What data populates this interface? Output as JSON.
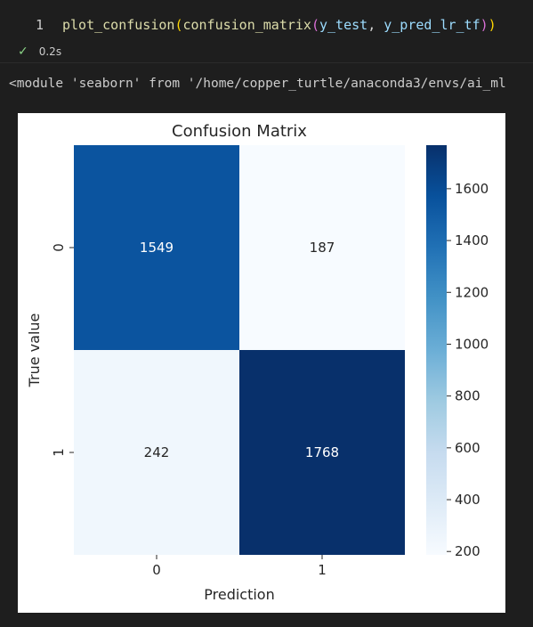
{
  "code_cell": {
    "line_number": "1",
    "tokens": {
      "fn_plot": "plot_confusion",
      "paren1_open": "(",
      "fn_cm": "confusion_matrix",
      "paren2_open": "(",
      "arg1": "y_test",
      "comma": ", ",
      "arg2": "y_pred_lr_tf",
      "paren2_close": ")",
      "paren1_close": ")"
    },
    "status": {
      "icon": "check-icon",
      "time": "0.2s"
    }
  },
  "output": {
    "text": "<module 'seaborn' from '/home/copper_turtle/anaconda3/envs/ai_ml"
  },
  "chart_data": {
    "type": "heatmap",
    "title": "Confusion Matrix",
    "xlabel": "Prediction",
    "ylabel": "True value",
    "x_categories": [
      "0",
      "1"
    ],
    "y_categories": [
      "0",
      "1"
    ],
    "values": [
      [
        1549,
        187
      ],
      [
        242,
        1768
      ]
    ],
    "colormap": "Blues",
    "colorbar": {
      "min": 187,
      "max": 1768,
      "ticks": [
        200,
        400,
        600,
        800,
        1000,
        1200,
        1400,
        1600
      ]
    },
    "annotations": true
  }
}
